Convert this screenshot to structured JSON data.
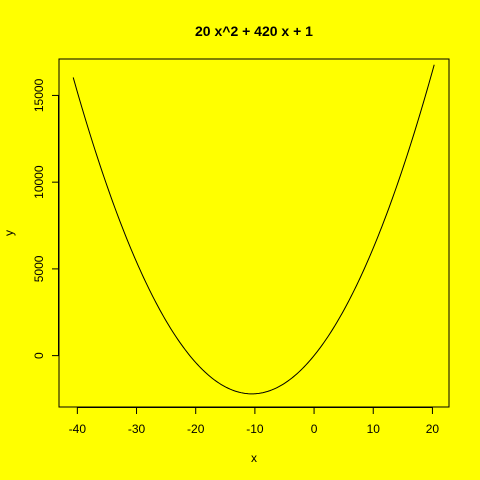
{
  "colors": {
    "background": "#FFFF00",
    "line": "#000000"
  },
  "chart_data": {
    "type": "line",
    "title": "20 x^2 +  420 x +  1",
    "xlabel": "x",
    "ylabel": "y",
    "function": {
      "a": 20,
      "b": 420,
      "c": 1
    },
    "x_range": [
      -40.7,
      20.3
    ],
    "xlim": [
      -43.1,
      22.8
    ],
    "ylim": [
      -2962,
      17100
    ],
    "x_ticks": [
      -40,
      -30,
      -20,
      -10,
      0,
      10,
      20
    ],
    "x_tick_labels": [
      "-40",
      "-30",
      "-20",
      "-10",
      "0",
      "10",
      "20"
    ],
    "y_ticks": [
      0,
      5000,
      10000,
      15000
    ],
    "y_tick_labels": [
      "0",
      "5000",
      "10000",
      "15000"
    ],
    "grid": false,
    "box": true
  }
}
